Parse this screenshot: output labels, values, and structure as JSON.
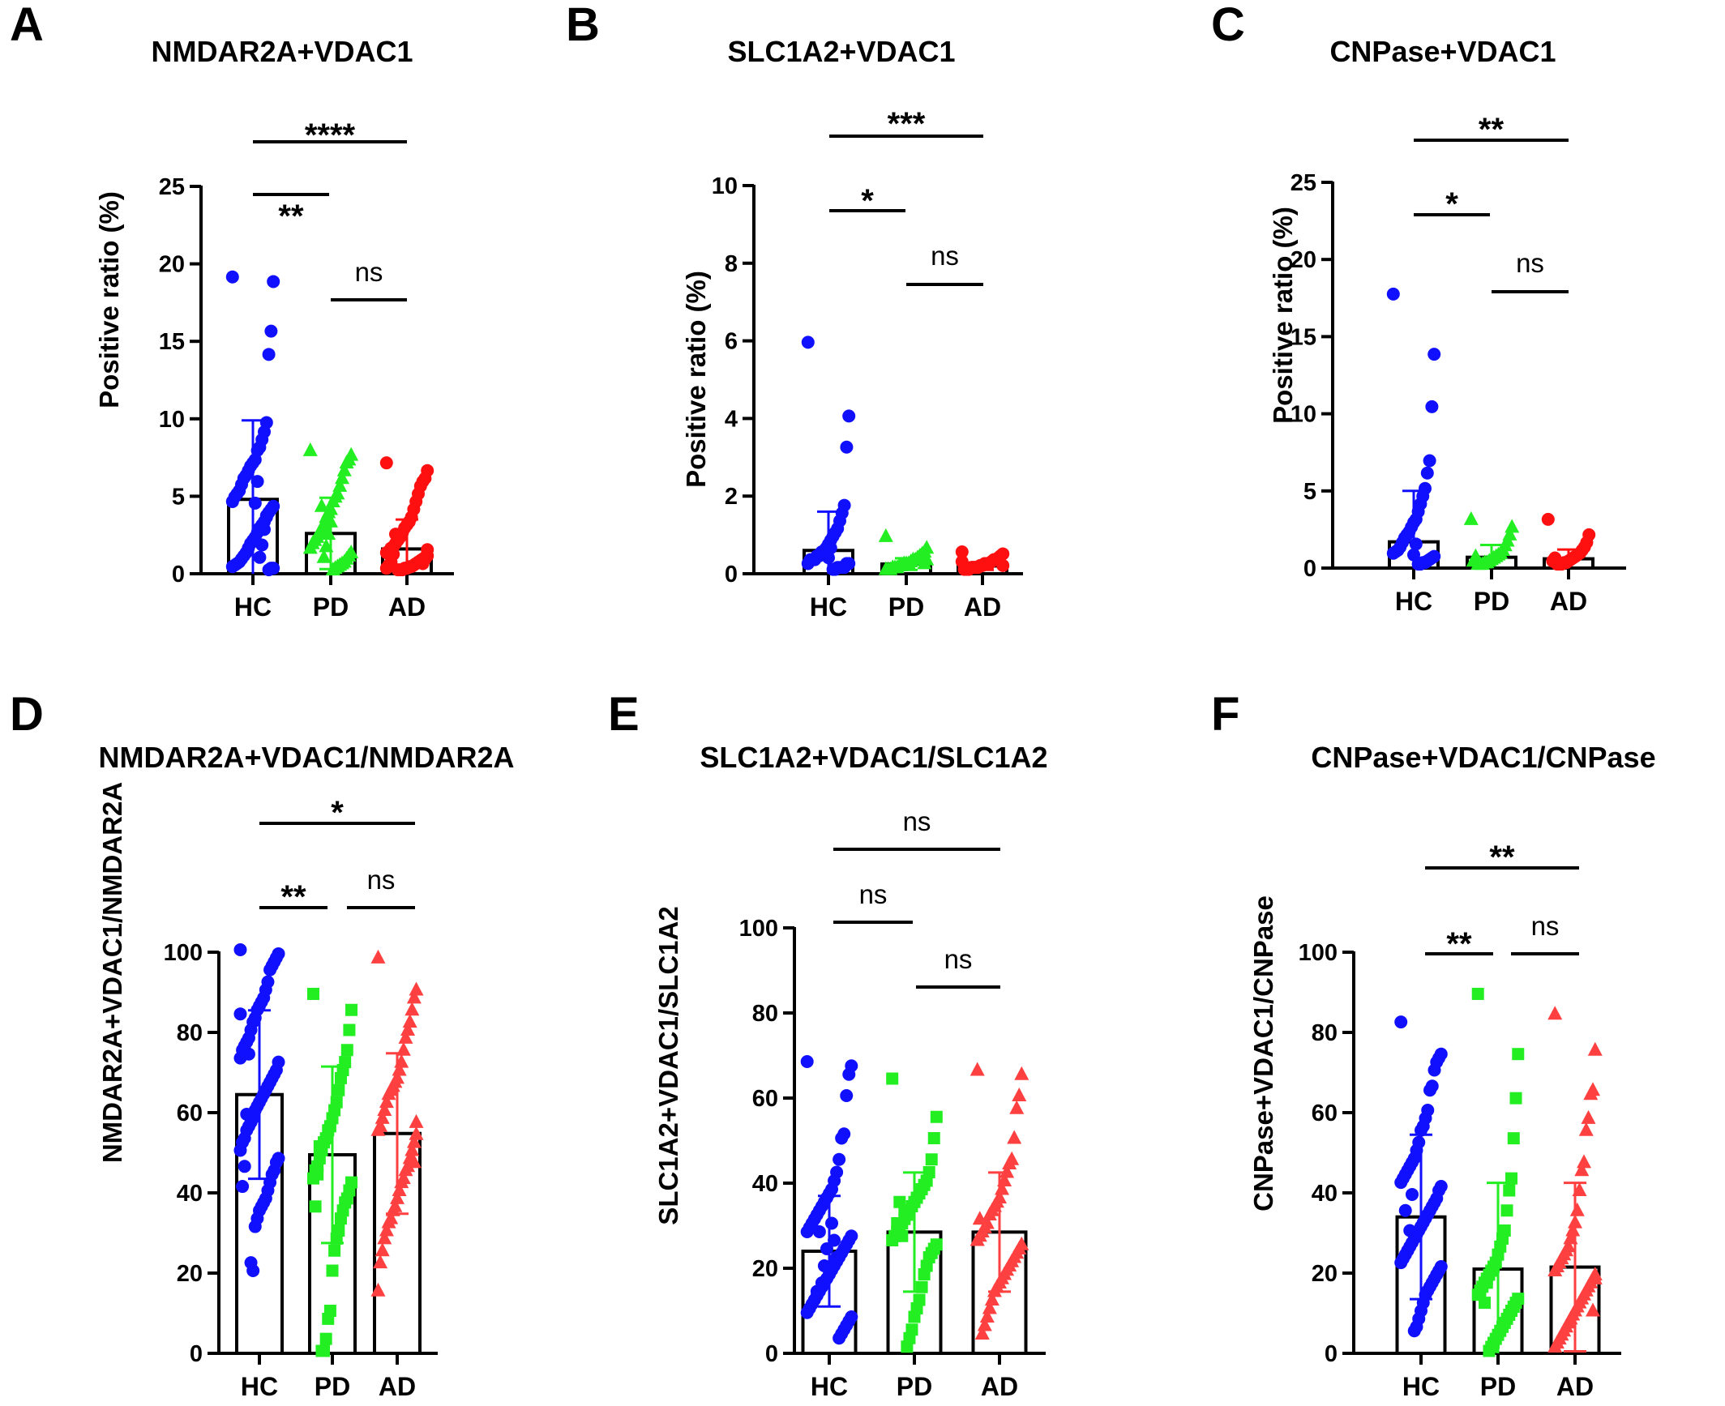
{
  "chart_data": [
    {
      "panel": "A",
      "type": "bar",
      "title": "NMDAR2A+VDAC1",
      "ylabel": "Positive ratio (%)",
      "ylim": [
        0,
        25
      ],
      "yticks": [
        0,
        5,
        10,
        15,
        20,
        25
      ],
      "categories": [
        "HC",
        "PD",
        "AD"
      ],
      "markers": [
        "circle",
        "triangle",
        "circle"
      ],
      "colors": [
        "#1010ff",
        "#22ee22",
        "#ff1010"
      ],
      "means": [
        4.8,
        2.6,
        1.6
      ],
      "sd": [
        5.1,
        2.3,
        1.9
      ],
      "points": [
        [
          19,
          18.7,
          15.5,
          14,
          9.6,
          9,
          8.5,
          8,
          7.8,
          7.2,
          7,
          6.8,
          6.5,
          6.2,
          6,
          5.6,
          5.2,
          5,
          4.8,
          4.5,
          4.2,
          4,
          3.8,
          3.5,
          3.2,
          3,
          2.8,
          2.5,
          2.2,
          2,
          1.8,
          1.5,
          1.2,
          1,
          0.8,
          0.6,
          0.5,
          0.4,
          0.3,
          0.2,
          0.2,
          0.1,
          3.6,
          2.7,
          1.7,
          0.9,
          5.8,
          4.4
        ],
        [
          7.8,
          7.5,
          7.2,
          7,
          6.5,
          6,
          5.5,
          5,
          4.8,
          4.5,
          4,
          3.8,
          3.5,
          3,
          2.8,
          2.5,
          2.2,
          2,
          1.8,
          1.5,
          1.2,
          1,
          0.8,
          0.6,
          0.5,
          0.4,
          0.3,
          0.2,
          0.1,
          3.2,
          2.4,
          1.6,
          0.9,
          4.2
        ],
        [
          7,
          6.5,
          6,
          5.8,
          5.5,
          5,
          4.5,
          4,
          3.5,
          3.2,
          3,
          2.8,
          2.5,
          2.2,
          2,
          1.8,
          1.6,
          1.5,
          1.3,
          1.2,
          1,
          0.9,
          0.8,
          0.7,
          0.6,
          0.5,
          0.4,
          0.3,
          0.3,
          0.2,
          0.2,
          0.1,
          0.1,
          0.1,
          2.4,
          1.1,
          0.6,
          0.4,
          0.2,
          1.4,
          0.8,
          0.5
        ]
      ],
      "comparisons": [
        {
          "from": "HC",
          "to": "PD",
          "label": "**"
        },
        {
          "from": "PD",
          "to": "AD",
          "label": "ns"
        },
        {
          "from": "HC",
          "to": "AD",
          "label": "****"
        }
      ]
    },
    {
      "panel": "B",
      "type": "bar",
      "title": "SLC1A2+VDAC1",
      "ylabel": "Positive ratio (%)",
      "ylim": [
        0,
        10
      ],
      "yticks": [
        0,
        2,
        4,
        6,
        8,
        10
      ],
      "categories": [
        "HC",
        "PD",
        "AD"
      ],
      "markers": [
        "circle",
        "triangle",
        "circle"
      ],
      "colors": [
        "#1010ff",
        "#22ee22",
        "#ff1010"
      ],
      "means": [
        0.6,
        0.25,
        0.2
      ],
      "sd": [
        1.0,
        0.15,
        0.1
      ],
      "points": [
        [
          5.9,
          4,
          3.2,
          1.7,
          1.5,
          1.3,
          1.1,
          1,
          0.9,
          0.8,
          0.7,
          0.6,
          0.5,
          0.5,
          0.4,
          0.4,
          0.3,
          0.3,
          0.3,
          0.2,
          0.2,
          0.2,
          0.1,
          0.1,
          0.1,
          0.1,
          0.05,
          0.05,
          0.6,
          0.35
        ],
        [
          0.9,
          0.6,
          0.5,
          0.45,
          0.4,
          0.35,
          0.3,
          0.3,
          0.25,
          0.2,
          0.2,
          0.2,
          0.15,
          0.15,
          0.1,
          0.1,
          0.1,
          0.05,
          0.05,
          0.05,
          0.3,
          0.2
        ],
        [
          0.5,
          0.45,
          0.4,
          0.35,
          0.3,
          0.3,
          0.25,
          0.2,
          0.2,
          0.2,
          0.15,
          0.15,
          0.1,
          0.1,
          0.1,
          0.1,
          0.05,
          0.05,
          0.05,
          0.25,
          0.15
        ]
      ],
      "comparisons": [
        {
          "from": "HC",
          "to": "PD",
          "label": "*"
        },
        {
          "from": "PD",
          "to": "AD",
          "label": "ns"
        },
        {
          "from": "HC",
          "to": "AD",
          "label": "***"
        }
      ]
    },
    {
      "panel": "C",
      "type": "bar",
      "title": "CNPase+VDAC1",
      "ylabel": "Positive ratio (%)",
      "ylim": [
        0,
        25
      ],
      "yticks": [
        0,
        5,
        10,
        15,
        20,
        25
      ],
      "categories": [
        "HC",
        "PD",
        "AD"
      ],
      "markers": [
        "circle",
        "triangle",
        "circle"
      ],
      "colors": [
        "#1010ff",
        "#22ee22",
        "#ff1010"
      ],
      "means": [
        1.7,
        0.7,
        0.6
      ],
      "sd": [
        3.3,
        0.8,
        0.6
      ],
      "points": [
        [
          17.6,
          13.7,
          10.3,
          6.8,
          6,
          5,
          4.5,
          4,
          3.5,
          3,
          2.8,
          2.5,
          2.2,
          2,
          1.8,
          1.5,
          1.2,
          1,
          0.9,
          0.8,
          0.6,
          0.5,
          0.4,
          0.3,
          0.2,
          0.2,
          0.1,
          0.1,
          1.4,
          0.7
        ],
        [
          3,
          2.5,
          2,
          1.6,
          1.3,
          1,
          0.8,
          0.7,
          0.6,
          0.5,
          0.4,
          0.3,
          0.2,
          0.2,
          0.1,
          0.1,
          0.1,
          0.6,
          0.3
        ],
        [
          3,
          2,
          1.5,
          1.2,
          1,
          0.8,
          0.7,
          0.6,
          0.5,
          0.4,
          0.3,
          0.2,
          0.2,
          0.1,
          0.1,
          0.1,
          0.5,
          0.3
        ]
      ],
      "comparisons": [
        {
          "from": "HC",
          "to": "PD",
          "label": "*"
        },
        {
          "from": "PD",
          "to": "AD",
          "label": "ns"
        },
        {
          "from": "HC",
          "to": "AD",
          "label": "**"
        }
      ]
    },
    {
      "panel": "D",
      "type": "bar",
      "title": "NMDAR2A+VDAC1/NMDAR2A",
      "ylabel": "NMDAR2A+VDAC1/NMDAR2A",
      "ylim": [
        0,
        100
      ],
      "yticks": [
        0,
        20,
        40,
        60,
        80,
        100
      ],
      "categories": [
        "HC",
        "PD",
        "AD"
      ],
      "markers": [
        "circle",
        "square",
        "triangle"
      ],
      "colors": [
        "#1010ff",
        "#22ee22",
        "#ff4040"
      ],
      "means": [
        64.5,
        49.5,
        54.8
      ],
      "sd": [
        21,
        22,
        20
      ],
      "points": [
        [
          100,
          99,
          98,
          97,
          96,
          95,
          92,
          90,
          88,
          87,
          86,
          85,
          83,
          82,
          80,
          78,
          77,
          76,
          75,
          73,
          72,
          70,
          69,
          68,
          67,
          66,
          65,
          64,
          63,
          62,
          61,
          60,
          58,
          57,
          56,
          55,
          53,
          52,
          50,
          48,
          47,
          45,
          44,
          42,
          40,
          38,
          37,
          36,
          35,
          33,
          31,
          20,
          22,
          74,
          59,
          46,
          41,
          84
        ],
        [
          89,
          85,
          80,
          75,
          72,
          70,
          68,
          65,
          62,
          60,
          58,
          56,
          55,
          53,
          52,
          50,
          48,
          46,
          45,
          43,
          42,
          40,
          38,
          37,
          35,
          33,
          30,
          28,
          25,
          20,
          10,
          8,
          3,
          0,
          0,
          51,
          44,
          36
        ],
        [
          98,
          90,
          88,
          85,
          82,
          80,
          78,
          75,
          72,
          70,
          68,
          67,
          66,
          65,
          64,
          62,
          60,
          58,
          56,
          55,
          54,
          52,
          50,
          48,
          46,
          45,
          43,
          42,
          40,
          38,
          36,
          35,
          33,
          32,
          30,
          28,
          25,
          22,
          15,
          57,
          47
        ]
      ],
      "comparisons": [
        {
          "from": "HC",
          "to": "PD",
          "label": "**"
        },
        {
          "from": "PD",
          "to": "AD",
          "label": "ns"
        },
        {
          "from": "HC",
          "to": "AD",
          "label": "*"
        }
      ]
    },
    {
      "panel": "E",
      "type": "bar",
      "title": "SLC1A2+VDAC1/SLC1A2",
      "ylabel": "SLC1A2+VDAC1/SLC1A2",
      "ylim": [
        0,
        100
      ],
      "yticks": [
        0,
        20,
        40,
        60,
        80,
        100
      ],
      "categories": [
        "HC",
        "PD",
        "AD"
      ],
      "markers": [
        "circle",
        "square",
        "triangle"
      ],
      "colors": [
        "#1010ff",
        "#22ee22",
        "#ff4040"
      ],
      "means": [
        24,
        28.5,
        28.5
      ],
      "sd": [
        13,
        14,
        14
      ],
      "points": [
        [
          68,
          67,
          65,
          60,
          51,
          50,
          45,
          42,
          40,
          38,
          37,
          36,
          35,
          34,
          33,
          32,
          31,
          30,
          29,
          28,
          27,
          26,
          25,
          24,
          23,
          22,
          21,
          20,
          19,
          18,
          17,
          16,
          15,
          14,
          13,
          12,
          11,
          10,
          9,
          8,
          7,
          6,
          5,
          4,
          3,
          22,
          26,
          30,
          18,
          24,
          20,
          16,
          28,
          14
        ],
        [
          64,
          55,
          50,
          45,
          42,
          40,
          39,
          38,
          37,
          36,
          35,
          34,
          33,
          32,
          31,
          30,
          29,
          28,
          27,
          26,
          25,
          24,
          23,
          22,
          20,
          18,
          15,
          12,
          10,
          8,
          5,
          3,
          1,
          33,
          27,
          35,
          30
        ],
        [
          66,
          65,
          60,
          57,
          50,
          45,
          44,
          42,
          40,
          38,
          36,
          35,
          34,
          33,
          32,
          30,
          29,
          28,
          27,
          26,
          25,
          24,
          23,
          22,
          21,
          20,
          19,
          18,
          17,
          16,
          15,
          14,
          12,
          10,
          8,
          6,
          4,
          31,
          26
        ]
      ],
      "comparisons": [
        {
          "from": "HC",
          "to": "PD",
          "label": "ns"
        },
        {
          "from": "PD",
          "to": "AD",
          "label": "ns"
        },
        {
          "from": "HC",
          "to": "AD",
          "label": "ns"
        }
      ]
    },
    {
      "panel": "F",
      "type": "bar",
      "title": "CNPase+VDAC1/CNPase",
      "ylabel": "CNPase+VDAC1/CNPase",
      "ylim": [
        0,
        100
      ],
      "yticks": [
        0,
        20,
        40,
        60,
        80,
        100
      ],
      "categories": [
        "HC",
        "PD",
        "AD"
      ],
      "markers": [
        "circle",
        "square",
        "triangle"
      ],
      "colors": [
        "#1010ff",
        "#22ee22",
        "#ff4040"
      ],
      "means": [
        34,
        21,
        21.5
      ],
      "sd": [
        20.5,
        21.5,
        21
      ],
      "points": [
        [
          82,
          74,
          73,
          72,
          70,
          66,
          65,
          60,
          58,
          56,
          55,
          52,
          50,
          48,
          47,
          46,
          45,
          44,
          43,
          42,
          41,
          40,
          38,
          37,
          36,
          35,
          34,
          33,
          32,
          31,
          30,
          29,
          28,
          27,
          26,
          25,
          24,
          23,
          22,
          21,
          20,
          19,
          18,
          17,
          16,
          15,
          14,
          12,
          10,
          8,
          6,
          5,
          39,
          30,
          25,
          35
        ],
        [
          89,
          74,
          63,
          53,
          43,
          40,
          35,
          30,
          28,
          26,
          24,
          22,
          21,
          20,
          19,
          18,
          17,
          16,
          15,
          14,
          13,
          12,
          11,
          10,
          9,
          8,
          7,
          6,
          5,
          4,
          3,
          2,
          1,
          0,
          17,
          12
        ],
        [
          84,
          75,
          65,
          64,
          58,
          55,
          47,
          45,
          40,
          35,
          32,
          30,
          28,
          26,
          25,
          24,
          23,
          22,
          21,
          20,
          19,
          18,
          17,
          16,
          15,
          14,
          13,
          12,
          11,
          10,
          9,
          8,
          7,
          6,
          5,
          4,
          3,
          2,
          1,
          18,
          10
        ]
      ],
      "comparisons": [
        {
          "from": "HC",
          "to": "PD",
          "label": "**"
        },
        {
          "from": "PD",
          "to": "AD",
          "label": "ns"
        },
        {
          "from": "HC",
          "to": "AD",
          "label": "**"
        }
      ]
    }
  ]
}
